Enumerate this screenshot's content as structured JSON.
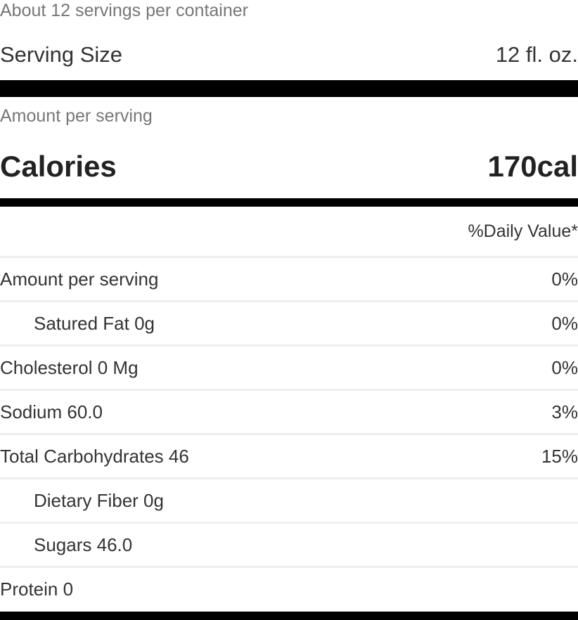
{
  "servings_per_container": "About 12 servings per container",
  "serving_size": {
    "label": "Serving Size",
    "value": "12 fl. oz."
  },
  "amount_per_serving": "Amount per serving",
  "calories": {
    "label": "Calories",
    "value": "170cal"
  },
  "daily_value_header": "%Daily Value*",
  "nutrients": [
    {
      "label": "Amount per serving",
      "dv": "0%",
      "indent": false
    },
    {
      "label": "Satured Fat 0g",
      "dv": "0%",
      "indent": true
    },
    {
      "label": "Cholesterol 0 Mg",
      "dv": "0%",
      "indent": false
    },
    {
      "label": "Sodium 60.0",
      "dv": "3%",
      "indent": false
    },
    {
      "label": "Total Carbohydrates 46",
      "dv": "15%",
      "indent": false
    },
    {
      "label": "Dietary Fiber 0g",
      "dv": "",
      "indent": true
    },
    {
      "label": "Sugars 46.0",
      "dv": "",
      "indent": true
    },
    {
      "label": "Protein 0",
      "dv": "",
      "indent": false
    }
  ]
}
